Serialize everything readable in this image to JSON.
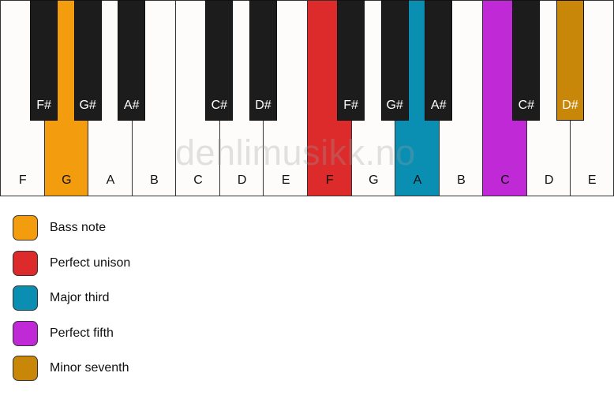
{
  "keyboard": {
    "white_keys": [
      {
        "label": "F"
      },
      {
        "label": "G",
        "highlight": "bass"
      },
      {
        "label": "A"
      },
      {
        "label": "B"
      },
      {
        "label": "C"
      },
      {
        "label": "D"
      },
      {
        "label": "E"
      },
      {
        "label": "F",
        "highlight": "unison"
      },
      {
        "label": "G"
      },
      {
        "label": "A",
        "highlight": "third"
      },
      {
        "label": "B"
      },
      {
        "label": "C",
        "highlight": "fifth"
      },
      {
        "label": "D"
      },
      {
        "label": "E"
      }
    ],
    "black_keys": [
      {
        "label": "F#",
        "after": 1
      },
      {
        "label": "G#",
        "after": 2
      },
      {
        "label": "A#",
        "after": 3
      },
      {
        "label": "C#",
        "after": 5
      },
      {
        "label": "D#",
        "after": 6
      },
      {
        "label": "F#",
        "after": 8
      },
      {
        "label": "G#",
        "after": 9
      },
      {
        "label": "A#",
        "after": 10
      },
      {
        "label": "C#",
        "after": 12
      },
      {
        "label": "D#",
        "after": 13,
        "highlight": "seventh"
      }
    ]
  },
  "watermark": "dehlimusikk.no",
  "colors": {
    "bass": "#f39c0e",
    "unison": "#dd2a2a",
    "third": "#0a8fb3",
    "fifth": "#c02ad6",
    "seventh": "#c9870a"
  },
  "legend": [
    {
      "key": "bass",
      "label": "Bass note"
    },
    {
      "key": "unison",
      "label": "Perfect unison"
    },
    {
      "key": "third",
      "label": "Major third"
    },
    {
      "key": "fifth",
      "label": "Perfect fifth"
    },
    {
      "key": "seventh",
      "label": "Minor seventh"
    }
  ]
}
